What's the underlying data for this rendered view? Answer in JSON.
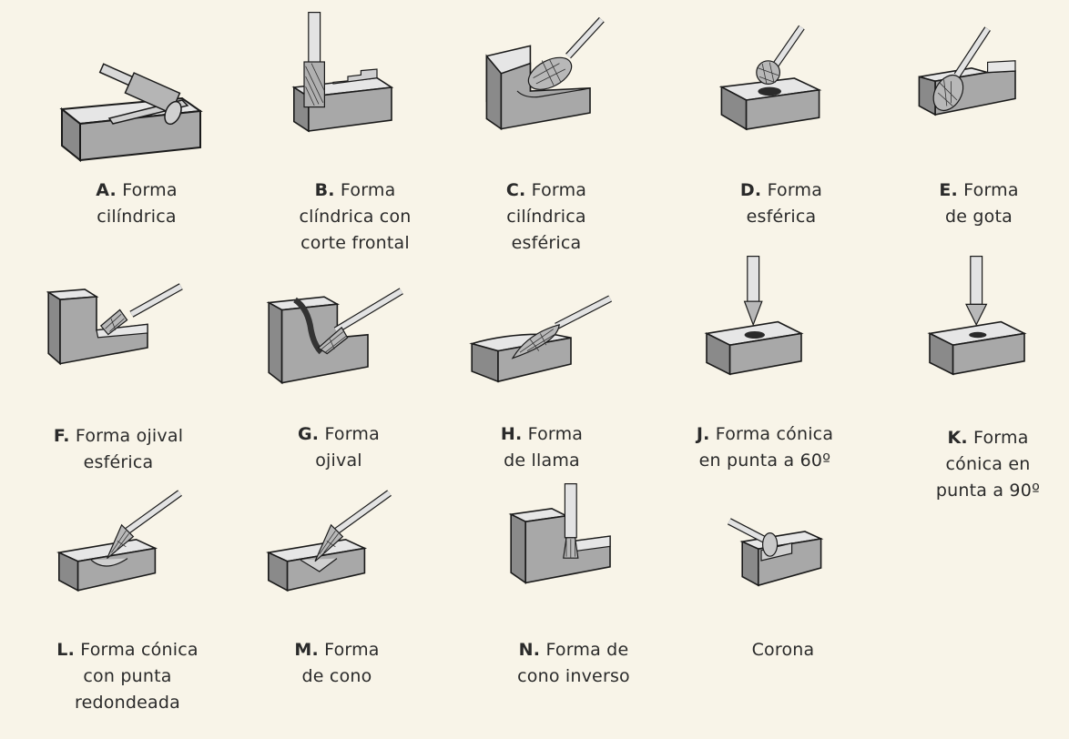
{
  "items": [
    {
      "letter": "A.",
      "lines": [
        "Forma",
        "cilíndrica"
      ],
      "icon": "cylinder-burr-icon"
    },
    {
      "letter": "B.",
      "lines": [
        "Forma",
        "clíndrica con",
        "corte frontal"
      ],
      "icon": "cylinder-end-cut-burr-icon"
    },
    {
      "letter": "C.",
      "lines": [
        "Forma",
        "cilíndrica",
        "esférica"
      ],
      "icon": "ball-nose-cylinder-burr-icon"
    },
    {
      "letter": "D.",
      "lines": [
        "Forma",
        "esférica"
      ],
      "icon": "ball-burr-icon"
    },
    {
      "letter": "E.",
      "lines": [
        "Forma",
        "de gota"
      ],
      "icon": "oval-burr-icon"
    },
    {
      "letter": "F.",
      "lines": [
        "Forma ojival",
        "esférica"
      ],
      "icon": "ball-nose-tree-burr-icon"
    },
    {
      "letter": "G.",
      "lines": [
        "Forma",
        "ojival"
      ],
      "icon": "pointed-tree-burr-icon"
    },
    {
      "letter": "H.",
      "lines": [
        "Forma",
        "de llama"
      ],
      "icon": "flame-burr-icon"
    },
    {
      "letter": "J.",
      "lines": [
        "Forma cónica",
        "en punta a 60º"
      ],
      "icon": "cone-60-burr-icon"
    },
    {
      "letter": "K.",
      "lines": [
        "Forma",
        "cónica en",
        "punta a 90º"
      ],
      "icon": "cone-90-burr-icon"
    },
    {
      "letter": "L.",
      "lines": [
        "Forma cónica",
        "con punta",
        "redondeada"
      ],
      "icon": "ball-nose-cone-burr-icon"
    },
    {
      "letter": "M.",
      "lines": [
        "Forma",
        "de cono"
      ],
      "icon": "pointed-cone-burr-icon"
    },
    {
      "letter": "N.",
      "lines": [
        "Forma de",
        "cono inverso"
      ],
      "icon": "inverted-cone-burr-icon"
    },
    {
      "letter": "",
      "lines": [
        "Corona"
      ],
      "icon": "crown-burr-icon"
    }
  ],
  "colors": {
    "background": "#f8f4e8",
    "block_top": "#e6e6e6",
    "block_front": "#a8a8a8",
    "block_side": "#8a8a8a",
    "outline": "#1a1a1a"
  }
}
